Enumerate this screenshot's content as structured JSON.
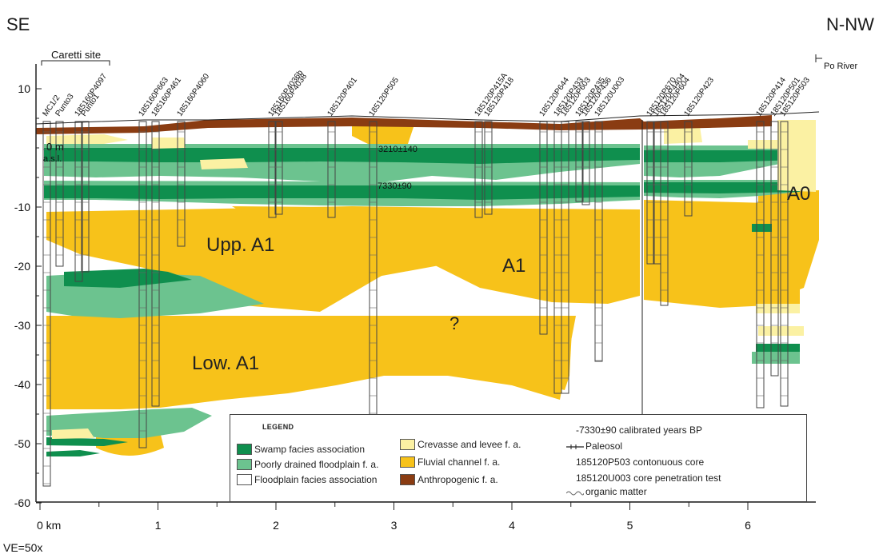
{
  "directions": {
    "left": "SE",
    "right": "N-NW"
  },
  "caretti_label": "Caretti site",
  "po_river_label": "Po River",
  "ve_label": "VE=50x",
  "depth_label_0": "0 m",
  "depth_label_asl": "a.s.l.",
  "axes": {
    "depth_ticks": [
      "10",
      "-10",
      "-20",
      "-30",
      "-40",
      "-50",
      "-60"
    ],
    "distance_ticks": [
      "0 km",
      "1",
      "2",
      "3",
      "4",
      "5",
      "6"
    ]
  },
  "unit_labels": {
    "upp_a1": "Upp. A1",
    "low_a1": "Low. A1",
    "a1": "A1",
    "a0": "A0",
    "question": "?"
  },
  "dates": [
    "3210±140",
    "7330±90"
  ],
  "cores": [
    "MC1/2",
    "Punto3",
    "185160P4097",
    "Punto1",
    "185160P663",
    "185160P461",
    "185160P4060",
    "185160P4036b",
    "185160P4038",
    "185120P401",
    "185120P505",
    "185120P415A",
    "185120P418",
    "185120P644",
    "185120P433",
    "185120P603",
    "185120P435",
    "185120P436",
    "185120U003",
    "185120P670",
    "185120P4404",
    "185120P604",
    "185120P423",
    "185120P414",
    "185120P501",
    "185120P503"
  ],
  "legend": {
    "title": "LEGEND",
    "swamp": "Swamp facies association",
    "poorly": "Poorly drained floodplain f. a.",
    "floodplain": "Floodplain facies association",
    "crevasse": "Crevasse and levee f. a.",
    "fluvial": "Fluvial channel f. a.",
    "anthropogenic": "Anthropogenic f. a.",
    "date_note": "-7330±90 calibrated years BP",
    "paleosol": "Paleosol",
    "core_note": "185120P503 contonuous core",
    "cpt_note": "185120U003 core penetration test",
    "organic": "organic matter"
  },
  "colors": {
    "swamp": "#0f8f4e",
    "poorly": "#6cc38f",
    "floodplain": "#ffffff",
    "crevasse": "#fbf1a3",
    "fluvial": "#f7c21a",
    "anthropogenic": "#8a3c12"
  }
}
